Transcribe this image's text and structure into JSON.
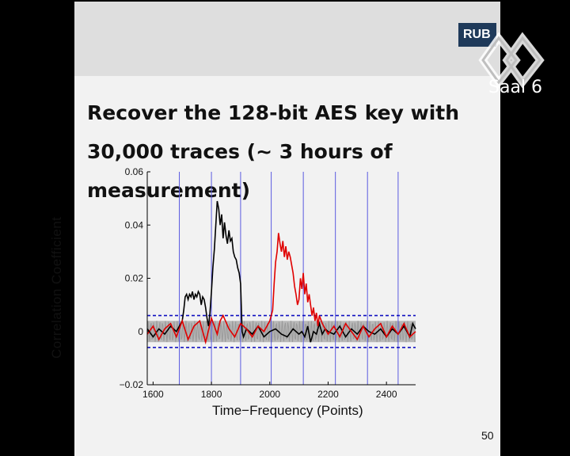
{
  "slide": {
    "logo_text": "RUB",
    "title": "Recover the 128-bit AES key with 30,000 traces (~ 3 hours of measurement)",
    "page_number": "50"
  },
  "watermark": {
    "text": "Saal 6",
    "icon": "ccc-logo-icon"
  },
  "chart_data": {
    "type": "line",
    "xlabel": "Time−Frequency (Points)",
    "ylabel": "Correlation Coefficient",
    "xlim": [
      1580,
      2500
    ],
    "ylim": [
      -0.02,
      0.06
    ],
    "xticks": [
      1600,
      1800,
      2000,
      2200,
      2400
    ],
    "yticks": [
      -0.02,
      0,
      0.02,
      0.04,
      0.06
    ],
    "ytick_labels": [
      "−0.02",
      "0",
      "0.02",
      "0.04",
      "0.06"
    ],
    "vertical_markers": [
      1690,
      1800,
      1900,
      2005,
      2115,
      2225,
      2335,
      2440
    ],
    "threshold_lines": [
      0.006,
      -0.006
    ],
    "noise_band": [
      -0.004,
      0.004
    ],
    "series": [
      {
        "color": "#000000",
        "x": [
          1580,
          1600,
          1620,
          1640,
          1660,
          1680,
          1690,
          1700,
          1705,
          1710,
          1715,
          1720,
          1725,
          1730,
          1735,
          1740,
          1745,
          1750,
          1755,
          1760,
          1765,
          1770,
          1775,
          1780,
          1785,
          1790,
          1795,
          1800,
          1805,
          1810,
          1815,
          1820,
          1825,
          1830,
          1835,
          1840,
          1845,
          1850,
          1855,
          1860,
          1865,
          1870,
          1875,
          1880,
          1885,
          1890,
          1895,
          1900,
          1905,
          1910,
          1920,
          1940,
          1960,
          1980,
          2000,
          2020,
          2040,
          2060,
          2080,
          2100,
          2110,
          2120,
          2130,
          2140,
          2150,
          2160,
          2170,
          2180,
          2190,
          2200,
          2220,
          2240,
          2260,
          2280,
          2300,
          2320,
          2340,
          2360,
          2380,
          2400,
          2420,
          2440,
          2460,
          2480,
          2490,
          2500
        ],
        "y": [
          0.001,
          -0.002,
          0.001,
          -0.001,
          0.002,
          0.0,
          0.002,
          0.004,
          0.008,
          0.013,
          0.014,
          0.012,
          0.014,
          0.013,
          0.015,
          0.012,
          0.014,
          0.013,
          0.015,
          0.014,
          0.01,
          0.013,
          0.012,
          0.009,
          0.005,
          0.002,
          0.007,
          0.015,
          0.024,
          0.031,
          0.04,
          0.049,
          0.046,
          0.04,
          0.044,
          0.035,
          0.041,
          0.036,
          0.033,
          0.038,
          0.034,
          0.035,
          0.03,
          0.028,
          0.027,
          0.024,
          0.022,
          0.018,
          0.0,
          -0.002,
          0.001,
          -0.001,
          0.002,
          -0.002,
          0.0,
          0.001,
          -0.001,
          -0.002,
          0.001,
          -0.001,
          0.0,
          -0.002,
          0.002,
          -0.004,
          0.0,
          -0.001,
          0.003,
          -0.001,
          0.001,
          0.0,
          -0.001,
          0.002,
          -0.002,
          0.001,
          -0.001,
          0.002,
          0.0,
          -0.001,
          0.001,
          -0.002,
          0.001,
          -0.001,
          0.002,
          -0.002,
          0.003,
          0.001
        ]
      },
      {
        "color": "#e00000",
        "x": [
          1580,
          1600,
          1620,
          1640,
          1660,
          1680,
          1700,
          1720,
          1740,
          1760,
          1780,
          1800,
          1820,
          1830,
          1840,
          1860,
          1880,
          1900,
          1920,
          1940,
          1960,
          1980,
          2000,
          2010,
          2015,
          2020,
          2025,
          2030,
          2035,
          2040,
          2045,
          2050,
          2055,
          2060,
          2065,
          2070,
          2075,
          2080,
          2085,
          2090,
          2095,
          2100,
          2105,
          2110,
          2115,
          2120,
          2125,
          2130,
          2135,
          2140,
          2145,
          2150,
          2155,
          2160,
          2165,
          2170,
          2180,
          2200,
          2220,
          2240,
          2260,
          2280,
          2300,
          2320,
          2340,
          2360,
          2380,
          2400,
          2420,
          2440,
          2460,
          2480,
          2500
        ],
        "y": [
          -0.001,
          0.002,
          -0.003,
          0.001,
          0.003,
          -0.002,
          0.004,
          -0.003,
          0.002,
          0.004,
          -0.004,
          0.005,
          -0.001,
          0.004,
          0.006,
          0.001,
          -0.002,
          0.003,
          0.001,
          -0.002,
          0.002,
          0.0,
          0.004,
          0.008,
          0.018,
          0.026,
          0.03,
          0.037,
          0.033,
          0.03,
          0.034,
          0.028,
          0.032,
          0.027,
          0.03,
          0.028,
          0.025,
          0.022,
          0.017,
          0.014,
          0.01,
          0.012,
          0.02,
          0.016,
          0.022,
          0.014,
          0.018,
          0.011,
          0.014,
          0.01,
          0.006,
          0.009,
          0.004,
          0.007,
          0.002,
          0.006,
          0.003,
          -0.001,
          0.002,
          -0.002,
          0.003,
          0.0,
          -0.003,
          0.002,
          -0.002,
          0.001,
          0.003,
          -0.002,
          0.002,
          -0.001,
          0.003,
          -0.002,
          0.0
        ]
      }
    ]
  }
}
